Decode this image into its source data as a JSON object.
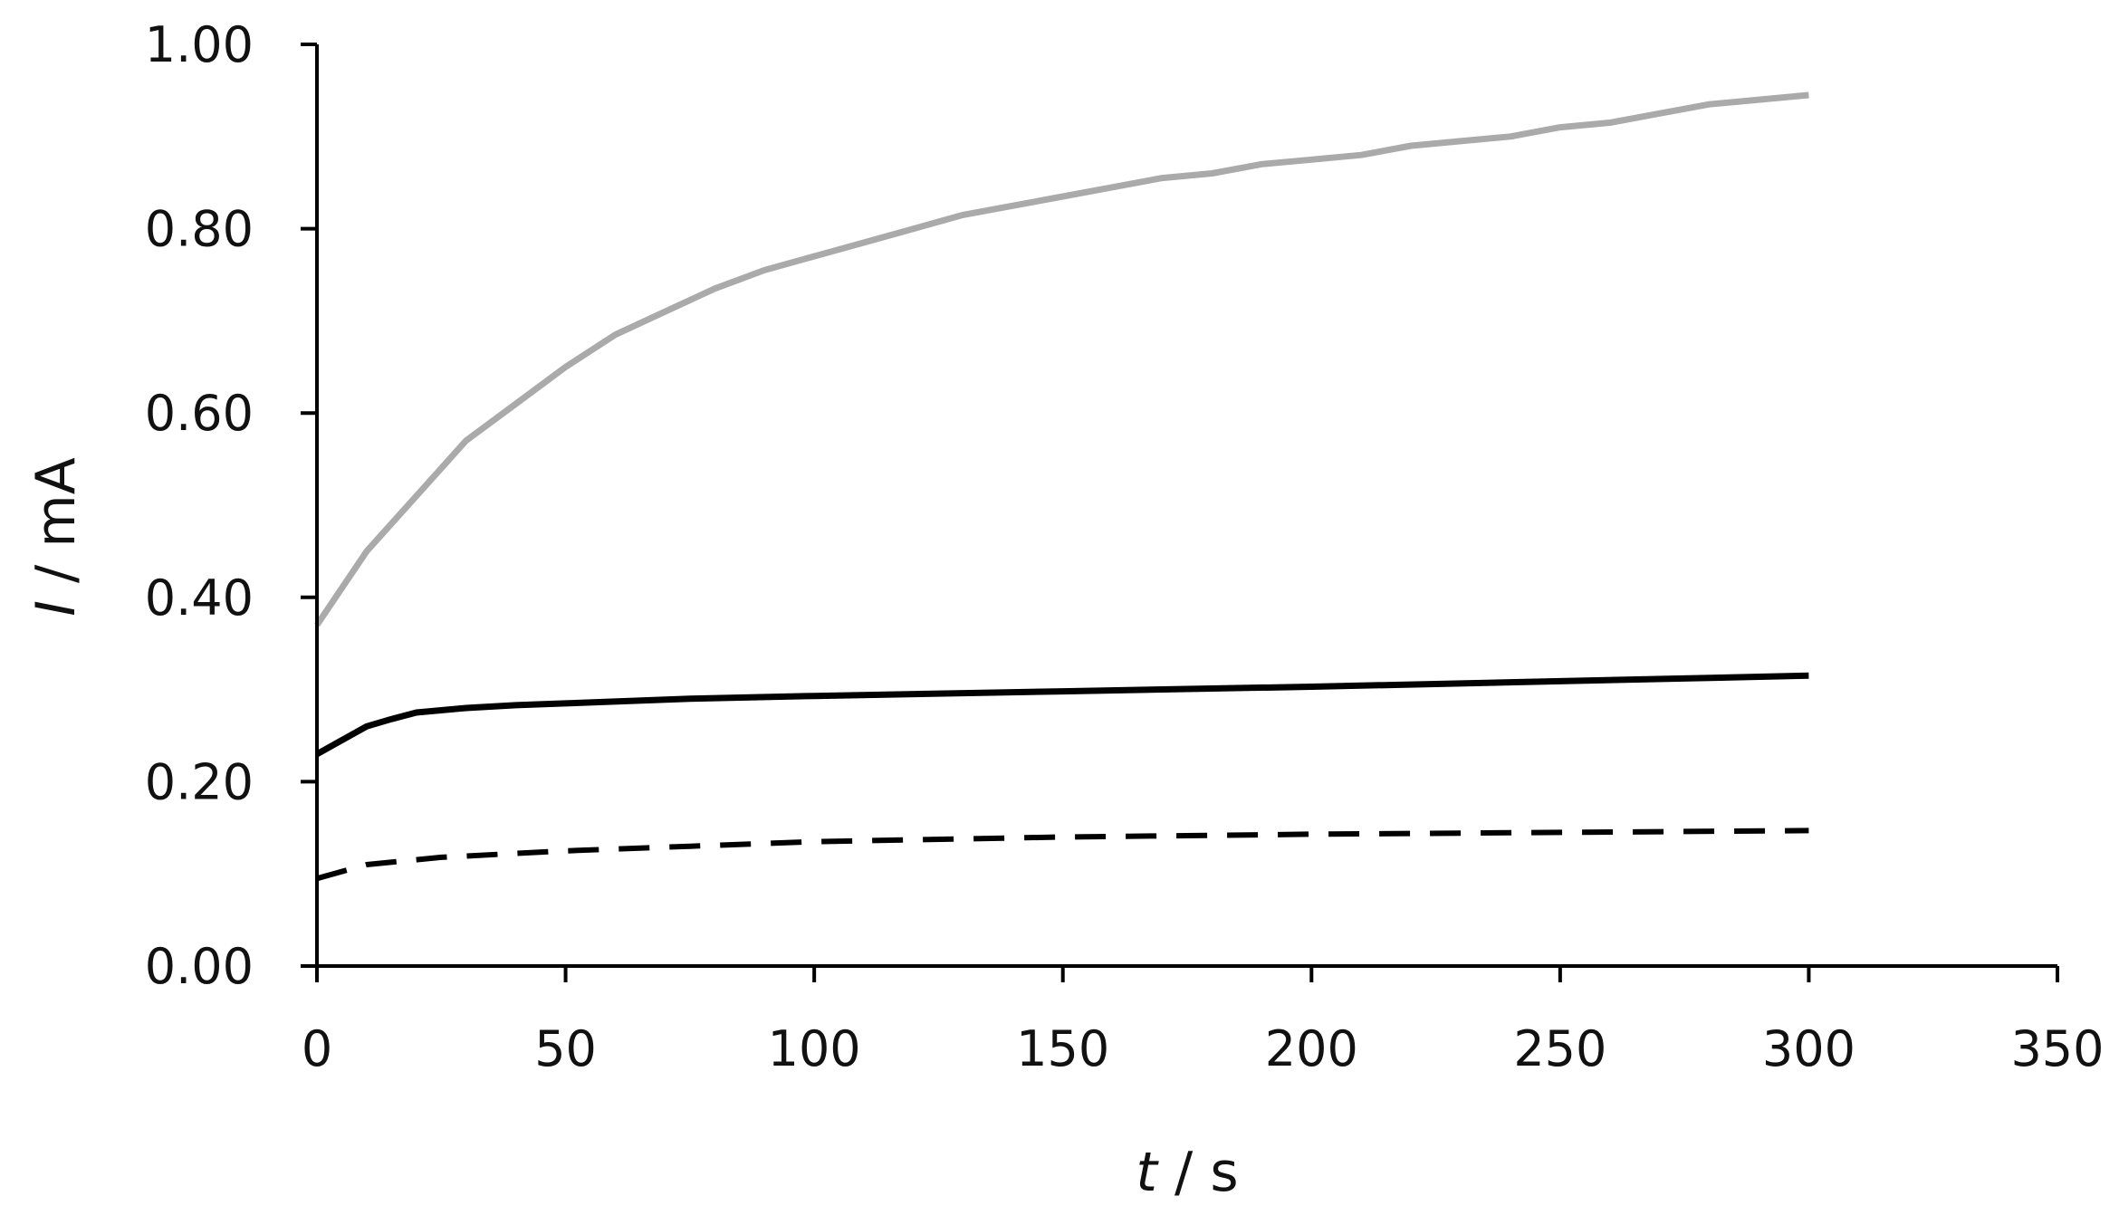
{
  "chart_data": {
    "type": "line",
    "title": "",
    "xlabel": {
      "var": "t",
      "unit": " / s"
    },
    "ylabel": {
      "var": "I",
      "unit": " / mA"
    },
    "xlim": [
      0,
      350
    ],
    "ylim": [
      0,
      1.0
    ],
    "xticks": [
      "0",
      "50",
      "100",
      "150",
      "200",
      "250",
      "300",
      "350"
    ],
    "yticks": [
      "0.00",
      "0.20",
      "0.40",
      "0.60",
      "0.80",
      "1.00"
    ],
    "grid": false,
    "legend": "none",
    "series": [
      {
        "color": "#aaaaaa",
        "style": "solid",
        "x": [
          0,
          5,
          10,
          20,
          30,
          40,
          50,
          60,
          70,
          80,
          90,
          100,
          110,
          120,
          130,
          140,
          150,
          160,
          170,
          180,
          190,
          200,
          210,
          220,
          230,
          240,
          250,
          260,
          270,
          280,
          290,
          300
        ],
        "y": [
          0.37,
          0.41,
          0.45,
          0.51,
          0.57,
          0.61,
          0.65,
          0.685,
          0.71,
          0.735,
          0.755,
          0.77,
          0.785,
          0.8,
          0.815,
          0.825,
          0.835,
          0.845,
          0.855,
          0.86,
          0.87,
          0.875,
          0.88,
          0.89,
          0.895,
          0.9,
          0.91,
          0.915,
          0.925,
          0.935,
          0.94,
          0.945
        ]
      },
      {
        "color": "#000000",
        "style": "solid",
        "x": [
          0,
          5,
          10,
          15,
          20,
          30,
          40,
          50,
          75,
          100,
          150,
          200,
          250,
          300
        ],
        "y": [
          0.23,
          0.245,
          0.26,
          0.268,
          0.275,
          0.28,
          0.283,
          0.285,
          0.29,
          0.293,
          0.298,
          0.303,
          0.309,
          0.315
        ]
      },
      {
        "color": "#000000",
        "style": "dashed",
        "x": [
          0,
          10,
          25,
          50,
          75,
          100,
          150,
          200,
          250,
          300
        ],
        "y": [
          0.095,
          0.11,
          0.118,
          0.125,
          0.13,
          0.135,
          0.14,
          0.143,
          0.145,
          0.147
        ]
      }
    ]
  }
}
